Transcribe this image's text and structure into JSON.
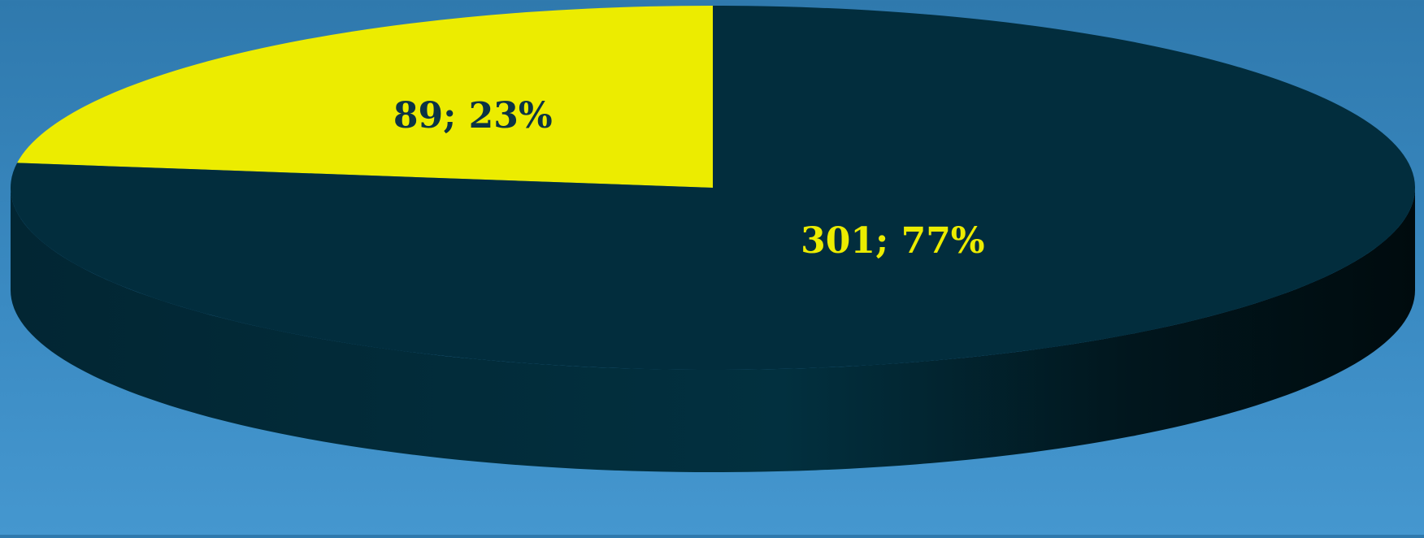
{
  "chart_data": {
    "type": "pie",
    "is_3d": true,
    "legend": "none",
    "slices": [
      {
        "value": 89,
        "percent": 23,
        "label": "89; 23%",
        "color": "#ecec00",
        "label_color": "#0b3344"
      },
      {
        "value": 301,
        "percent": 77,
        "label": "301; 77%",
        "color": "#022d3d",
        "label_color": "#ecec00"
      }
    ]
  },
  "colors": {
    "background_top": "#2f79ad",
    "background_bottom": "#4597cf",
    "side_light": "#032b38",
    "side_dark": "#000e12"
  }
}
